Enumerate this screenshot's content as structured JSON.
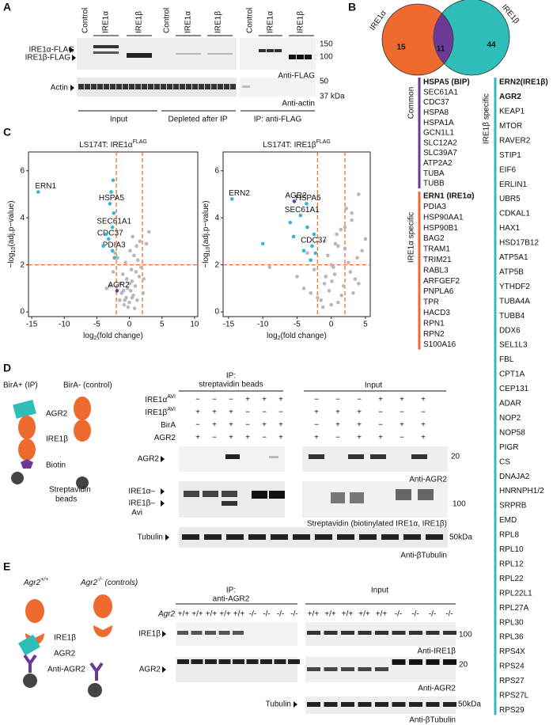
{
  "panels": {
    "A": {
      "label": "A",
      "lanes": [
        "Control",
        "IRE1α",
        "IRE1β",
        "Control",
        "IRE1α",
        "IRE1β",
        "Control",
        "IRE1α",
        "IRE1β"
      ],
      "bands": [
        "IRE1α-FLAG",
        "IRE1β-FLAG",
        "Actin"
      ],
      "mw_top": [
        "150",
        "100"
      ],
      "mw_bottom": [
        "50",
        "37 kDa"
      ],
      "antibodies": [
        "Anti-FLAG",
        "Anti-actin"
      ],
      "groups": [
        "Input",
        "Depleted after IP",
        "IP: anti-FLAG"
      ]
    },
    "B": {
      "label": "B",
      "venn": {
        "left": "IRE1α",
        "right": "IRE1β",
        "left_only": 15,
        "both": 11,
        "right_only": 44
      },
      "common_title": "Common",
      "common": [
        "HSPA5 (BIP)",
        "SEC61A1",
        "CDC37",
        "HSPA8",
        "HSPA1A",
        "GCN1L1",
        "SLC12A2",
        "SLC39A7",
        "ATP2A2",
        "TUBA",
        "TUBB"
      ],
      "alpha_title": "IRE1α specific",
      "alpha": [
        "ERN1 (IRE1α)",
        "PDIA3",
        "HSP90AA1",
        "HSP90B1",
        "BAG2",
        "TRAM1",
        "TRIM21",
        "RABL3",
        "ARFGEF2",
        "PNPLA6",
        "TPR",
        "HACD3",
        "RPN1",
        "RPN2",
        "S100A16"
      ],
      "beta_title": "IRE1β specific",
      "beta": [
        "ERN2(IRE1β)",
        "AGR2",
        "KEAP1",
        "MTOR",
        "RAVER2",
        "STIP1",
        "EIF6",
        "ERLIN1",
        "UBR5",
        "CDKAL1",
        "HAX1",
        "HSD17B12",
        "ATP5A1",
        "ATP5B",
        "YTHDF2",
        "TUBA4A",
        "TUBB4",
        "DDX6",
        "SEL1L3",
        "FBL",
        "CPT1A",
        "CEP131",
        "ADAR",
        "NOP2",
        "NOP58",
        "PIGR",
        "CS",
        "DNAJA2",
        "HNRNPH1/2",
        "SRPRB",
        "EMD",
        "RPL8",
        "RPL10",
        "RPL12",
        "RPL22",
        "RPL22L1",
        "RPL27A",
        "RPL30",
        "RPL36",
        "RPS4X",
        "RPS24",
        "RPS27",
        "RPS27L",
        "RPS29"
      ]
    },
    "C": {
      "label": "C",
      "charts": [
        {
          "type": "scatter",
          "title": {
            "text": "LS174T: IRE1α",
            "sup": "FLAG"
          },
          "xlabel": {
            "text": "log",
            "sub": "2",
            "rest": "(fold change)"
          },
          "ylabel": {
            "text": "−log",
            "sub": "10",
            "rest": "(adj.p−value)"
          },
          "xlim": [
            -15.5,
            10.5
          ],
          "xticks": [
            -15,
            -10,
            -5,
            0,
            5,
            10
          ],
          "ylim": [
            -0.2,
            6.8
          ],
          "yticks": [
            0,
            2,
            4,
            6
          ],
          "cutoffs": {
            "x": [
              -2,
              2
            ],
            "y": 2,
            "color": "#f26a2e"
          },
          "series": [
            {
              "color": "#b8b8b8",
              "x": [
                -1.5,
                -1.2,
                -0.8,
                -0.5,
                -0.3,
                0,
                0.2,
                0.4,
                0.6,
                0.9,
                1.2,
                1.5,
                1.8,
                -1,
                -0.6,
                -0.2,
                0.3,
                0.7,
                1.1,
                -1.4,
                -0.9,
                0.1,
                0.5,
                1.3,
                2.2,
                2.6,
                3,
                -2.5,
                -3,
                0.8,
                -0.4,
                0.4,
                1.6,
                -1.8,
                2.1,
                0,
                -0.7,
                1,
                -3.5,
                -2.2
              ],
              "y": [
                0.5,
                0.8,
                0.3,
                0.6,
                1.0,
                0.4,
                0.9,
                1.3,
                0.7,
                1.1,
                0.5,
                1.5,
                1.9,
                1.6,
                2.1,
                0.2,
                1.8,
                2.4,
                2.8,
                1.2,
                0.9,
                2.6,
                3.2,
                2.2,
                1.4,
                2.9,
                3.4,
                1.7,
                1.1,
                0.15,
                1.4,
                0.6,
                3.0,
                2.3,
                0.8,
                1.2,
                0.5,
                1.7,
                1.0,
                2.5
              ]
            },
            {
              "color": "#35b4d4",
              "x": [
                -14,
                -3,
                -2.6,
                -3.2,
                -2.6,
                -2.5,
                -2.8,
                -2.4,
                -3.6,
                -2.3,
                -4
              ],
              "y": [
                5.1,
                4.6,
                3.6,
                3.1,
                2.6,
                5.6,
                5.1,
                4.2,
                3.3,
                2.3,
                2.8
              ],
              "labels": [
                "ERN1",
                "HSPA5",
                "SEC61A1",
                "CDC37",
                "PDIA3",
                null,
                null,
                null,
                null,
                null,
                null
              ]
            },
            {
              "color": "#6b3a96",
              "x": [
                -1.9
              ],
              "y": [
                0.9
              ],
              "labels": [
                "AGR2"
              ]
            }
          ]
        },
        {
          "type": "scatter",
          "title": {
            "text": "LS174T: IRE1β",
            "sup": "FLAG"
          },
          "xlabel": {
            "text": "log",
            "sub": "2",
            "rest": "(fold change)"
          },
          "ylabel": {
            "text": "−log",
            "sub": "10",
            "rest": "(adj.p−value)"
          },
          "xlim": [
            -15.8,
            5.7
          ],
          "xticks": [
            -15,
            -10,
            -5,
            0,
            5
          ],
          "ylim": [
            -0.2,
            6.8
          ],
          "yticks": [
            0,
            2,
            4,
            6
          ],
          "cutoffs": {
            "x": [
              -2,
              2
            ],
            "y": 2,
            "color": "#f26a2e"
          },
          "series": [
            {
              "color": "#b8b8b8",
              "x": [
                -5,
                -4,
                -3,
                -2.5,
                -1.5,
                -1,
                -0.5,
                0,
                0.5,
                1,
                1.5,
                2,
                2.5,
                3,
                3.5,
                4,
                4.5,
                5,
                -1.2,
                -0.3,
                0.3,
                0.8,
                1.8,
                2.8,
                3.8,
                -2,
                -1,
                0,
                1,
                2,
                3,
                4,
                -3.5,
                -0.8,
                0.6,
                1.4,
                2.2,
                3.2,
                0.1,
                -9
              ],
              "y": [
                1.5,
                1.0,
                0.8,
                1.8,
                0.5,
                1.2,
                2.4,
                0.3,
                1.6,
                2.8,
                0.7,
                3.6,
                2.1,
                4.2,
                1.4,
                5.0,
                2.6,
                3.1,
                0.2,
                0.9,
                1.9,
                3.3,
                1.1,
                1.7,
                2.3,
                0.6,
                3.0,
                2.0,
                0.4,
                2.7,
                3.9,
                1.2,
                2.5,
                1.5,
                2.9,
                3.5,
                4.4,
                0.8,
                1.3,
                1.9
              ]
            },
            {
              "color": "#35b4d4",
              "x": [
                -14.5,
                -3.6,
                -4.5,
                -2.8,
                -10,
                -6,
                -5.5,
                -3.5,
                -2.5,
                -3,
                -2.3,
                -4
              ],
              "y": [
                4.8,
                4.6,
                4.1,
                2.8,
                2.9,
                3.8,
                3.2,
                3.6,
                3.3,
                2.2,
                2.5,
                2.6
              ],
              "labels": [
                "ERN2",
                "HSPA5",
                "SEC61A1",
                "CDC37",
                null,
                null,
                null,
                null,
                null,
                null,
                null,
                null
              ]
            },
            {
              "color": "#6b3a96",
              "x": [
                -5.4
              ],
              "y": [
                4.7
              ],
              "labels": [
                "AGR2"
              ]
            }
          ]
        }
      ]
    },
    "D": {
      "label": "D",
      "cartoon": {
        "left_title": "BirA+ (IP)",
        "right_title": "BirA- (control)",
        "agr2": "AGR2",
        "ire1b": "IRE1β",
        "biotin": "Biotin",
        "beads": [
          "Streptavidin",
          "beads"
        ]
      },
      "ip_title": [
        "IP:",
        "streptavidin beads"
      ],
      "input_title": "Input",
      "rows": [
        {
          "label": {
            "text": "IRE1α",
            "sup": "AVI"
          },
          "ip": [
            "−",
            "−",
            "−",
            "+",
            "+",
            "+"
          ],
          "input": [
            "−",
            "−",
            "−",
            "+",
            "+",
            "+"
          ]
        },
        {
          "label": {
            "text": "IRE1β",
            "sup": "AVI"
          },
          "ip": [
            "+",
            "+",
            "+",
            "−",
            "−",
            "−"
          ],
          "input": [
            "+",
            "+",
            "+",
            "−",
            "−",
            "−"
          ]
        },
        {
          "label": {
            "text": "BirA"
          },
          "ip": [
            "−",
            "+",
            "+",
            "−",
            "+",
            "+"
          ],
          "input": [
            "−",
            "+",
            "+",
            "−",
            "+",
            "+"
          ]
        },
        {
          "label": {
            "text": "AGR2"
          },
          "ip": [
            "+",
            "−",
            "+",
            "+",
            "−",
            "+"
          ],
          "input": [
            "+",
            "−",
            "+",
            "+",
            "−",
            "+"
          ]
        }
      ],
      "blots": {
        "agr2": "AGR2",
        "ire1a": "IRE1α–",
        "ire1b": "IRE1β–",
        "avi": "Avi",
        "tubulin": "Tubulin"
      },
      "mw": [
        "20",
        "100",
        "50kDa"
      ],
      "antibodies": [
        "Anti-AGR2",
        "Streptavidin (biotinylated IRE1α, IRE1β)",
        "Anti-βTubulin"
      ]
    },
    "E": {
      "label": "E",
      "cartoon": {
        "wt": {
          "text": "Agr2",
          "sup": "+/+"
        },
        "ko": {
          "text": "Agr2",
          "sup": "-/-",
          "rest": " (controls)"
        },
        "ire1b": "IRE1β",
        "agr2": "AGR2",
        "antibody": "Anti-AGR2"
      },
      "ip_title": [
        "IP:",
        "anti-AGR2"
      ],
      "input_title": "Input",
      "genotype_label": "Agr2",
      "ip": [
        "+/+",
        "+/+",
        "+/+",
        "+/+",
        "+/+",
        "-/-",
        "-/-",
        "-/-",
        "-/-"
      ],
      "input": [
        "+/+",
        "+/+",
        "+/+",
        "+/+",
        "+/+",
        "-/-",
        "-/-",
        "-/-",
        "-/-"
      ],
      "blots": {
        "ire1b": "IRE1β",
        "agr2": "AGR2",
        "tubulin": "Tubulin"
      },
      "mw": [
        "100",
        "20",
        "50kDa"
      ],
      "antibodies": [
        "Anti-IRE1β",
        "Anti-AGR2",
        "Anti-βTubulin"
      ]
    }
  }
}
